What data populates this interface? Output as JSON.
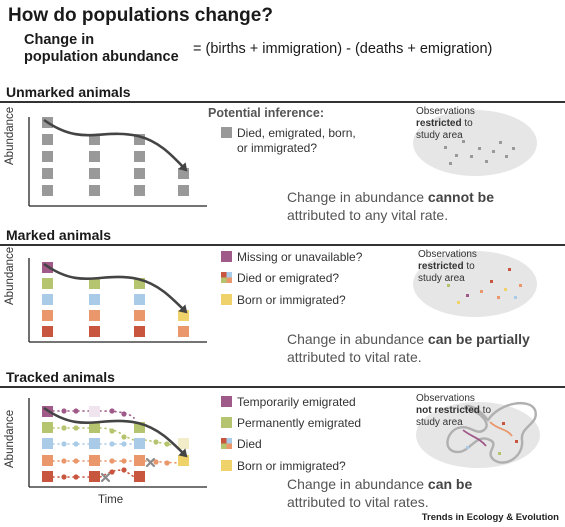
{
  "title": "How do populations change?",
  "equation": {
    "left_line1": "Change in",
    "left_line2": "population abundance",
    "right": "= (births + immigration) - (deaths + emigration)"
  },
  "sections": [
    {
      "title": "Unmarked animals",
      "y_label": "Abundance",
      "inference_heading": "Potential inference:",
      "legend": [
        {
          "text": "Died, emigrated, born, or immigrated?",
          "color": "#999999"
        }
      ],
      "obs_pre": "Observations",
      "obs_bold": "restricted",
      "obs_mid": " to",
      "obs_post": "study area",
      "change_pre": "Change in abundance ",
      "change_bold": "cannot be",
      "change_post": "attributed to any vital rate."
    },
    {
      "title": "Marked animals",
      "y_label": "Abundance",
      "legend": [
        {
          "text": "Missing or unavailable?",
          "color": "#a05a8a"
        },
        {
          "text": "Died or emigrated?",
          "color": "mixed"
        },
        {
          "text": "Born or immigrated?",
          "color": "#f0d26a"
        }
      ],
      "obs_pre": "Observations",
      "obs_bold": "restricted",
      "obs_mid": " to",
      "obs_post": "study area",
      "change_pre": "Change in abundance ",
      "change_bold": "can be partially",
      "change_post": "attributed to vital rate."
    },
    {
      "title": "Tracked animals",
      "y_label": "Abundance",
      "x_label": "Time",
      "legend": [
        {
          "text": "Temporarily emigrated",
          "color": "#a05a8a"
        },
        {
          "text": "Permanently emigrated",
          "color": "#b5c46e"
        },
        {
          "text": "Died",
          "color": "mixed"
        },
        {
          "text": "Born or immigrated?",
          "color": "#f0d26a"
        }
      ],
      "obs_pre": "Observations",
      "obs_bold": "not restricted",
      "obs_mid": " to",
      "obs_post": "study area",
      "change_pre": "Change in abundance ",
      "change_bold": "can be",
      "change_post": "attributed to vital rates."
    }
  ],
  "credit": "Trends in Ecology & Evolution",
  "colors": {
    "gray": "#999999",
    "purple": "#a05a8a",
    "green": "#b5c46e",
    "blue": "#a9cbe8",
    "orange": "#e9976b",
    "red": "#c8563f",
    "yellow": "#f0d26a",
    "ellipse": "#e6e6e6"
  }
}
